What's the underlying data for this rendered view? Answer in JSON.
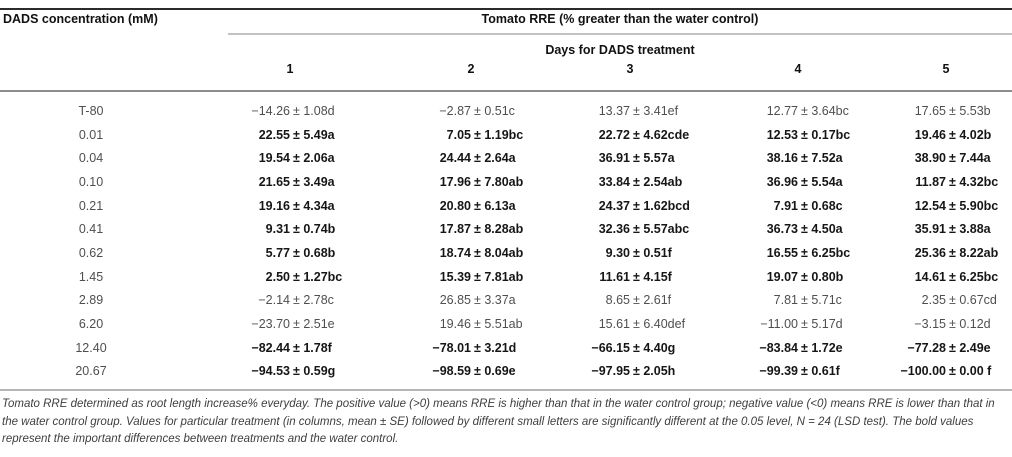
{
  "table": {
    "col0_header": "DADS concentration (mM)",
    "group_header": "Tomato RRE (% greater than the water control)",
    "subgroup_header": "Days for DADS treatment",
    "day_columns": [
      "1",
      "2",
      "3",
      "4",
      "5"
    ],
    "rows": [
      {
        "label": "T-80",
        "bold": false,
        "values": [
          "−14.26 ± 1.08d",
          "−2.87 ± 0.51c",
          "13.37 ± 3.41ef",
          "12.77 ± 3.64bc",
          "17.65 ± 5.53b"
        ]
      },
      {
        "label": "0.01",
        "bold": true,
        "values": [
          "22.55 ± 5.49a",
          "7.05 ± 1.19bc",
          "22.72 ± 4.62cde",
          "12.53 ± 0.17bc",
          "19.46 ± 4.02b"
        ]
      },
      {
        "label": "0.04",
        "bold": true,
        "values": [
          "19.54 ± 2.06a",
          "24.44 ± 2.64a",
          "36.91 ± 5.57a",
          "38.16 ± 7.52a",
          "38.90 ± 7.44a"
        ]
      },
      {
        "label": "0.10",
        "bold": true,
        "values": [
          "21.65 ± 3.49a",
          "17.96 ± 7.80ab",
          "33.84 ± 2.54ab",
          "36.96 ± 5.54a",
          "11.87 ± 4.32bc"
        ]
      },
      {
        "label": "0.21",
        "bold": true,
        "values": [
          "19.16 ± 4.34a",
          "20.80 ± 6.13a",
          "24.37 ± 1.62bcd",
          "7.91 ± 0.68c",
          "12.54 ± 5.90bc"
        ]
      },
      {
        "label": "0.41",
        "bold": true,
        "values": [
          "9.31 ± 0.74b",
          "17.87 ± 8.28ab",
          "32.36 ± 5.57abc",
          "36.73 ± 4.50a",
          "35.91 ± 3.88a"
        ]
      },
      {
        "label": "0.62",
        "bold": true,
        "values": [
          "5.77 ± 0.68b",
          "18.74 ± 8.04ab",
          "9.30 ± 0.51f",
          "16.55 ± 6.25bc",
          "25.36 ± 8.22ab"
        ]
      },
      {
        "label": "1.45",
        "bold": true,
        "values": [
          "2.50 ± 1.27bc",
          "15.39 ± 7.81ab",
          "11.61 ± 4.15f",
          "19.07 ± 0.80b",
          "14.61 ± 6.25bc"
        ]
      },
      {
        "label": "2.89",
        "bold": false,
        "values": [
          "−2.14 ± 2.78c",
          "26.85 ± 3.37a",
          "8.65 ± 2.61f",
          "7.81 ± 5.71c",
          "2.35 ± 0.67cd"
        ]
      },
      {
        "label": "6.20",
        "bold": false,
        "values": [
          "−23.70 ± 2.51e",
          "19.46 ± 5.51ab",
          "15.61 ± 6.40def",
          "−11.00 ± 5.17d",
          "−3.15 ± 0.12d"
        ]
      },
      {
        "label": "12.40",
        "bold": true,
        "values": [
          "−82.44 ± 1.78f",
          "−78.01 ± 3.21d",
          "−66.15 ± 4.40g",
          "−83.84 ± 1.72e",
          "−77.28 ± 2.49e"
        ]
      },
      {
        "label": "20.67",
        "bold": true,
        "values": [
          "−94.53 ± 0.59g",
          "−98.59 ± 0.69e",
          "−97.95 ± 2.05h",
          "−99.39 ± 0.61f",
          "−100.00 ± 0.00 f"
        ]
      }
    ]
  },
  "footnote": "Tomato RRE determined as root length increase% everyday. The positive value (>0) means RRE is higher than that in the water control group; negative value (<0) means RRE is lower than that in the water control group. Values for particular treatment (in columns, mean ± SE) followed by different small letters are significantly different at the 0.05 level, N = 24 (LSD test). The bold values represent the important differences between treatments and the water control.",
  "colors": {
    "rule_dark": "#2b2b2b",
    "rule_light_gray": "#c2c2c2",
    "rule_mid_gray": "#8d8d8d",
    "rule_foot_gray": "#b5b5b5",
    "text_regular": "#4f4f4f",
    "text_bold": "#161616"
  }
}
